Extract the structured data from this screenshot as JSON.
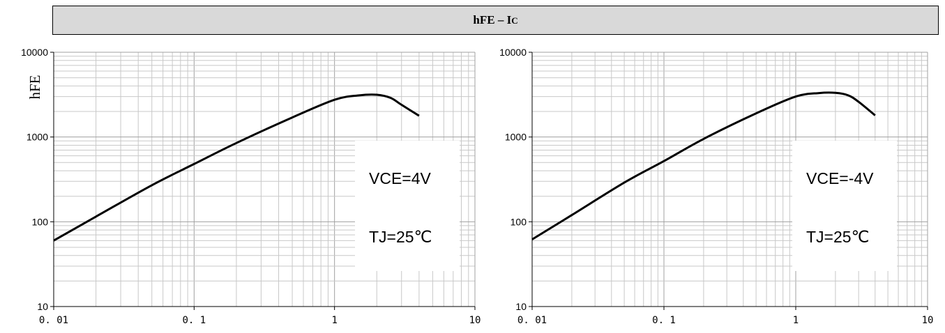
{
  "header": {
    "title_main": "hFE – I",
    "title_sub": "C"
  },
  "chart_data": [
    {
      "type": "line",
      "ylabel": "hFE",
      "xscale": "log",
      "yscale": "log",
      "xlim": [
        0.01,
        10
      ],
      "ylim": [
        10,
        10000
      ],
      "x_tick_labels": [
        "0. 01",
        "0. 1",
        "1",
        "10"
      ],
      "y_tick_labels": [
        "10",
        "100",
        "1000",
        "10000"
      ],
      "grid": true,
      "annotations": [
        "VCE=4V",
        "TJ=25℃"
      ],
      "series": [
        {
          "x": [
            0.01,
            0.02,
            0.05,
            0.1,
            0.2,
            0.5,
            1,
            1.5,
            2,
            2.5,
            3,
            4
          ],
          "y": [
            60,
            115,
            270,
            480,
            850,
            1700,
            2750,
            3100,
            3150,
            2900,
            2400,
            1780
          ]
        }
      ]
    },
    {
      "type": "line",
      "xscale": "log",
      "yscale": "log",
      "xlim": [
        0.01,
        10
      ],
      "ylim": [
        10,
        10000
      ],
      "x_tick_labels": [
        "0. 01",
        "0. 1",
        "1",
        "10"
      ],
      "y_tick_labels": [
        "10",
        "100",
        "1000",
        "10000"
      ],
      "grid": true,
      "annotations": [
        "VCE=-4V",
        "TJ=25℃"
      ],
      "series": [
        {
          "x": [
            0.01,
            0.02,
            0.05,
            0.1,
            0.2,
            0.5,
            1,
            1.5,
            2,
            2.5,
            3,
            4
          ],
          "y": [
            62,
            120,
            290,
            520,
            950,
            1900,
            3000,
            3300,
            3320,
            3100,
            2600,
            1800
          ]
        }
      ]
    }
  ]
}
